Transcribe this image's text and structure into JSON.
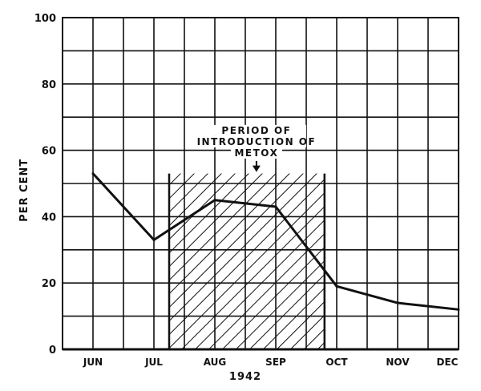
{
  "chart_data": {
    "type": "line",
    "categories": [
      "JUN",
      "JUL",
      "AUG",
      "SEP",
      "OCT",
      "NOV",
      "DEC"
    ],
    "series": [
      {
        "x": [
          0,
          1,
          2,
          3,
          4,
          5,
          6
        ],
        "values": [
          53,
          33,
          45,
          43,
          19,
          14,
          12
        ]
      }
    ],
    "ylabel": "PER CENT",
    "xlabel": "1942",
    "ylim": [
      0,
      100
    ],
    "yticks": [
      0,
      20,
      40,
      60,
      80,
      100
    ],
    "xlim": [
      -0.5,
      6
    ],
    "grid": true,
    "shaded_region": {
      "x_start": 1.25,
      "x_end": 3.8,
      "y_top": 53,
      "annotation": [
        "PERIOD OF",
        "INTRODUCTION OF",
        "METOX"
      ]
    },
    "colors": {
      "line": "#111111",
      "grid": "#111111",
      "hatch": "#111111"
    }
  }
}
